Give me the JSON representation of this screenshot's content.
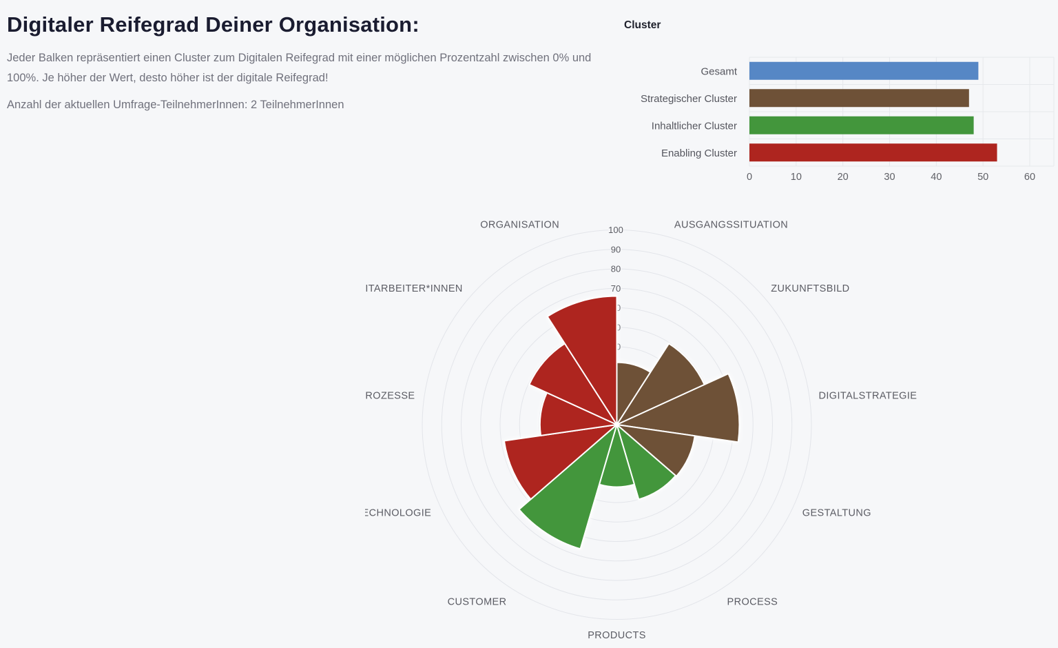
{
  "page": {
    "title": "Digitaler Reifegrad Deiner Organisation:",
    "description": "Jeder Balken repräsentiert einen Cluster zum Digitalen Reifegrad mit einer möglichen Prozentzahl zwischen 0% und 100%. Je höher der Wert, desto höher ist der digitale Reifegrad!",
    "participants_label": "Anzahl der aktuellen Umfrage-TeilnehmerInnen:",
    "participants_value": "2 TeilnehmerInnen"
  },
  "colors": {
    "background": "#f6f7f9",
    "heading": "#1a1c30",
    "body_text": "#70717c",
    "axis_label": "#55565e",
    "tick_label": "#5f6066",
    "grid_line": "#e6e8ec",
    "ring_line": "#e3e5ea",
    "blue": "#5687c5",
    "brown": "#6e5137",
    "green": "#43963c",
    "red": "#ae251f"
  },
  "chart_data": [
    {
      "type": "bar",
      "orientation": "horizontal",
      "title": "Cluster",
      "categories": [
        "Gesamt",
        "Strategischer Cluster",
        "Inhaltlicher Cluster",
        "Enabling Cluster"
      ],
      "values": [
        49,
        47,
        48,
        53
      ],
      "bar_colors": [
        "#5687c5",
        "#6e5137",
        "#43963c",
        "#ae251f"
      ],
      "xlabel": "",
      "ylabel": "",
      "xlim": [
        0,
        65.2
      ],
      "x_ticks": [
        0,
        10,
        20,
        30,
        40,
        50,
        60
      ],
      "grid": true,
      "legend": false
    },
    {
      "type": "bar",
      "subtype": "polar-rose-nightingale",
      "title": "",
      "start_angle": "top",
      "direction": "clockwise",
      "categories": [
        "AUSGANGSSITUATION",
        "ZUKUNFTSBILD",
        "DIGITALSTRATEGIE",
        "GESTALTUNG",
        "PROCESS",
        "PRODUCTS",
        "CUSTOMER",
        "TECHNOLOGIE",
        "PROZESSE",
        "MITARBEITER*INNEN",
        "ORGANISATION"
      ],
      "values": [
        32,
        49.5,
        63,
        40.5,
        40,
        32,
        66.5,
        58.5,
        39.5,
        49.5,
        66
      ],
      "sector_colors": [
        "#6e5137",
        "#6e5137",
        "#6e5137",
        "#6e5137",
        "#43963c",
        "#43963c",
        "#43963c",
        "#ae251f",
        "#ae251f",
        "#ae251f",
        "#ae251f"
      ],
      "cluster_of_sector": [
        "Strategischer Cluster",
        "Strategischer Cluster",
        "Strategischer Cluster",
        "Strategischer Cluster",
        "Inhaltlicher Cluster",
        "Inhaltlicher Cluster",
        "Inhaltlicher Cluster",
        "Enabling Cluster",
        "Enabling Cluster",
        "Enabling Cluster",
        "Enabling Cluster"
      ],
      "radial_axis": {
        "min": 0,
        "max": 100,
        "tick_interval": 10,
        "tick_labels": [
          10,
          20,
          30,
          40,
          50,
          60,
          70,
          80,
          90,
          100
        ]
      },
      "grid": true,
      "legend": false
    }
  ]
}
